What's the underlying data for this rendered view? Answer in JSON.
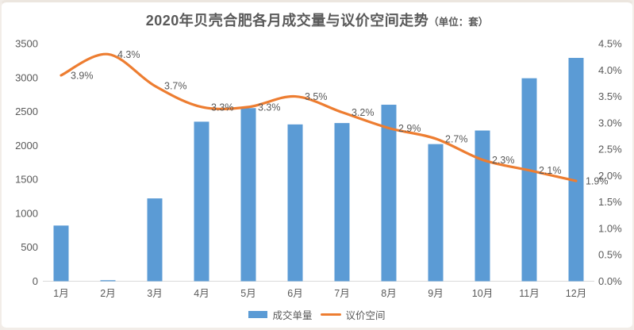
{
  "title": {
    "text": "2020年贝壳合肥各月成交量与议价空间走势",
    "unit_note": "（单位：套）"
  },
  "legend": {
    "items": [
      {
        "label": "成交单量",
        "swatch": "bar",
        "color": "#5B9BD5"
      },
      {
        "label": "议价空间",
        "swatch": "line",
        "color": "#ED7D31"
      }
    ]
  },
  "chart_data": {
    "type": "combo",
    "title": "2020年贝壳合肥各月成交量与议价空间走势（单位：套）",
    "categories": [
      "1月",
      "2月",
      "3月",
      "4月",
      "5月",
      "6月",
      "7月",
      "8月",
      "9月",
      "10月",
      "11月",
      "12月"
    ],
    "series": [
      {
        "name": "成交单量",
        "type": "bar",
        "axis": "left",
        "color": "#5B9BD5",
        "values": [
          820,
          15,
          1220,
          2350,
          2550,
          2310,
          2330,
          2600,
          2020,
          2220,
          2990,
          3290
        ]
      },
      {
        "name": "议价空间",
        "type": "line",
        "axis": "right",
        "color": "#ED7D31",
        "smooth": true,
        "values": [
          3.9,
          4.3,
          3.7,
          3.3,
          3.3,
          3.5,
          3.2,
          2.9,
          2.7,
          2.3,
          2.1,
          1.9
        ],
        "point_labels": [
          "3.9%",
          "4.3%",
          "3.7%",
          "3.3%",
          "3.3%",
          "3.5%",
          "3.2%",
          "2.9%",
          "2.7%",
          "2.3%",
          "2.1%",
          "1.9%"
        ]
      }
    ],
    "left_axis": {
      "min": 0,
      "max": 3500,
      "step": 500,
      "ticks": [
        "0",
        "500",
        "1000",
        "1500",
        "2000",
        "2500",
        "3000",
        "3500"
      ]
    },
    "right_axis": {
      "min": 0,
      "max": 4.5,
      "step": 0.5,
      "ticks": [
        "0.0%",
        "0.5%",
        "1.0%",
        "1.5%",
        "2.0%",
        "2.5%",
        "3.0%",
        "3.5%",
        "4.0%",
        "4.5%"
      ]
    },
    "grid": false,
    "legend_position": "bottom"
  },
  "colors": {
    "bar": "#5B9BD5",
    "line": "#ED7D31",
    "text": "#595959",
    "axis_line": "#d9d9d9",
    "background": "#ffffff",
    "frame": "#ece6df"
  }
}
